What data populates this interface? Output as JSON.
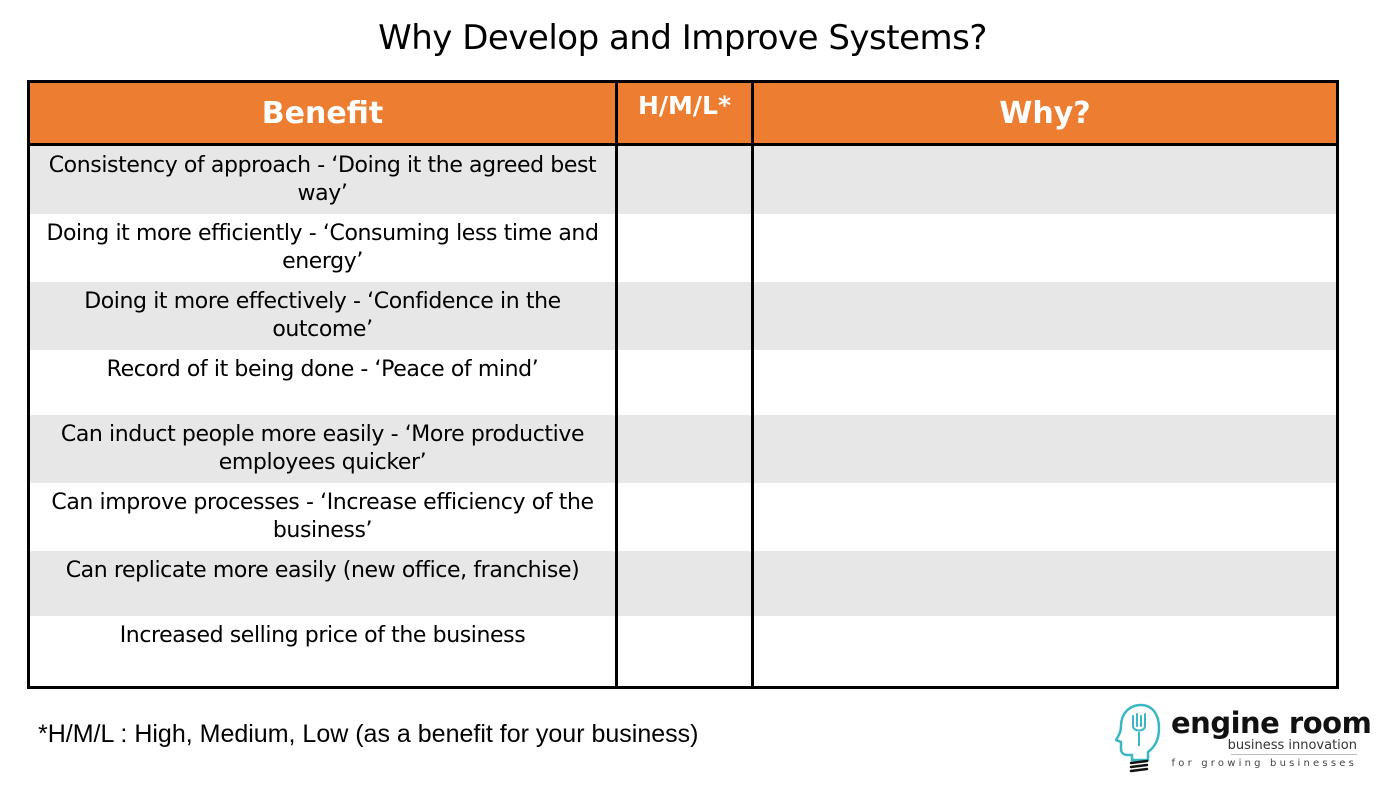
{
  "title": "Why Develop and Improve Systems?",
  "table": {
    "headers": [
      "Benefit",
      "H/M/L*",
      "Why?"
    ],
    "rows": [
      {
        "benefit": "Consistency of approach - ‘Doing it the agreed best way’",
        "hml": "",
        "why": ""
      },
      {
        "benefit": "Doing it more efficiently - ‘Consuming less time and energy’",
        "hml": "",
        "why": ""
      },
      {
        "benefit": "Doing it more effectively - ‘Confidence in the outcome’",
        "hml": "",
        "why": ""
      },
      {
        "benefit": "Record of it being done - ‘Peace of mind’",
        "hml": "",
        "why": ""
      },
      {
        "benefit": "Can induct people more easily - ‘More productive employees quicker’",
        "hml": "",
        "why": ""
      },
      {
        "benefit": "Can improve processes - ‘Increase efficiency of the business’",
        "hml": "",
        "why": ""
      },
      {
        "benefit": "Can replicate more easily (new office, franchise)",
        "hml": "",
        "why": ""
      },
      {
        "benefit": "Increased selling price of the business",
        "hml": "",
        "why": ""
      }
    ]
  },
  "footnote": "*H/M/L : High, Medium, Low (as a benefit for your business)",
  "logo": {
    "name": "engine room",
    "tagline": "business innovation",
    "subtitle": "for growing businesses",
    "icon": "lightbulb-head-icon"
  },
  "colors": {
    "header_bg": "#ed7d31",
    "header_text": "#ffffff",
    "row_shade": "#e7e7e7",
    "logo_accent": "#3bb7c4"
  }
}
